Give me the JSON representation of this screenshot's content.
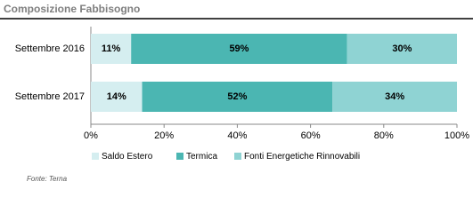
{
  "chart_data": {
    "type": "stacked-bar-horizontal",
    "title": "Composizione Fabbisogno",
    "categories": [
      "Settembre 2016",
      "Settembre 2017"
    ],
    "series": [
      {
        "name": "Saldo Estero",
        "color": "#d5eef0",
        "values": [
          11,
          14
        ],
        "value_labels": [
          "11%",
          "14%"
        ]
      },
      {
        "name": "Termica",
        "color": "#4bb6b2",
        "values": [
          59,
          52
        ],
        "value_labels": [
          "59%",
          "52%"
        ]
      },
      {
        "name": "Fonti Energetiche Rinnovabili",
        "color": "#8fd3d3",
        "values": [
          30,
          34
        ],
        "value_labels": [
          "30%",
          "34%"
        ]
      }
    ],
    "xlim": [
      0,
      100
    ],
    "xticks": [
      {
        "value": 0,
        "label": "0%"
      },
      {
        "value": 20,
        "label": "20%"
      },
      {
        "value": 40,
        "label": "40%"
      },
      {
        "value": 60,
        "label": "60%"
      },
      {
        "value": 80,
        "label": "80%"
      },
      {
        "value": 100,
        "label": "100%"
      }
    ],
    "legend": "bottom",
    "source": "Fonte: Terna"
  }
}
